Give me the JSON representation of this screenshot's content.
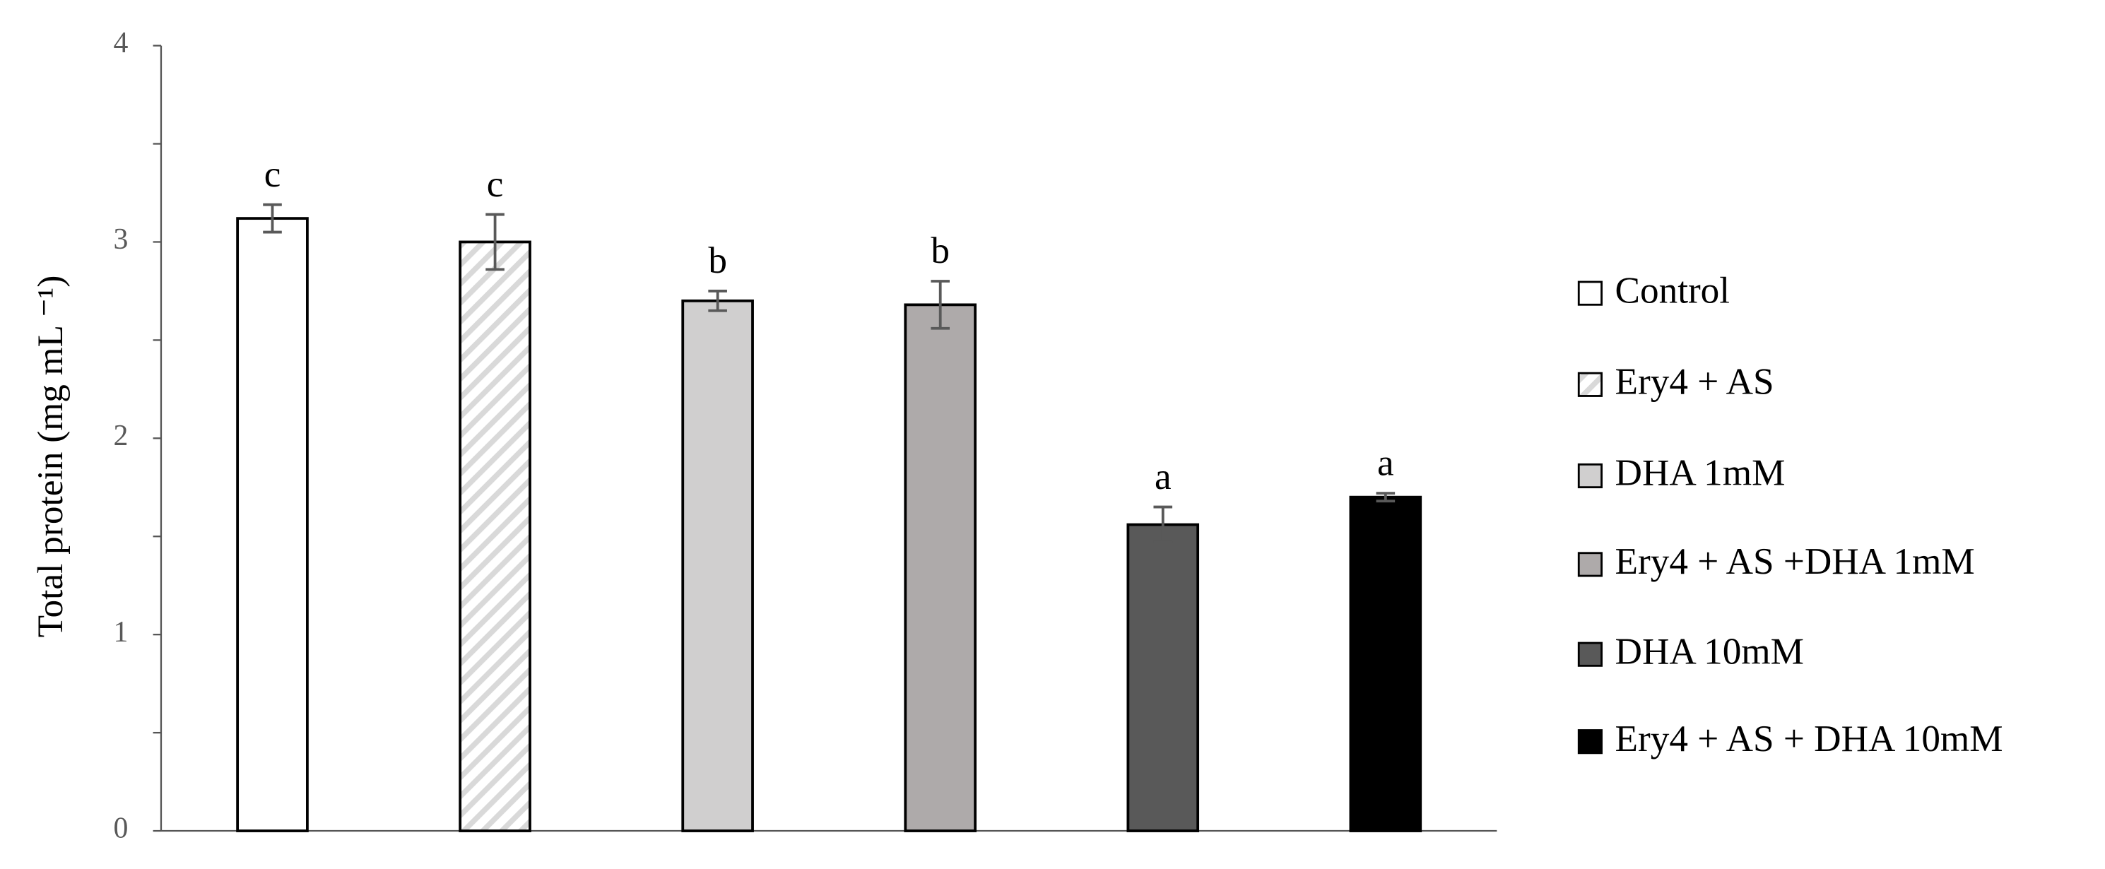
{
  "chart_data": {
    "type": "bar",
    "y_label": "Total protein (mg mL ⁻¹)",
    "ylim": [
      0,
      4
    ],
    "yticks": [
      0,
      1,
      2,
      3,
      4
    ],
    "minor_yticks": [
      0.5,
      1.5,
      2.5,
      3.5
    ],
    "bars": [
      {
        "name": "Control",
        "color": "#ffffff",
        "value": 3.12,
        "error": 0.07,
        "letter": "c"
      },
      {
        "name": "Ery4 + AS",
        "color": "#ffffff",
        "pattern": "hatch",
        "value": 3.0,
        "error": 0.14,
        "letter": "c"
      },
      {
        "name": "DHA 1mM",
        "color": "#d0cfcf",
        "value": 2.7,
        "error": 0.05,
        "letter": "b"
      },
      {
        "name": "Ery4 + AS +DHA 1mM",
        "color": "#aeaaaa",
        "value": 2.68,
        "error": 0.12,
        "letter": "b"
      },
      {
        "name": "DHA 10mM",
        "color": "#595959",
        "value": 1.56,
        "error": 0.09,
        "letter": "a"
      },
      {
        "name": "Ery4 + AS + DHA 10mM",
        "color": "#000000",
        "value": 1.7,
        "error": 0.02,
        "letter": "a"
      }
    ]
  }
}
